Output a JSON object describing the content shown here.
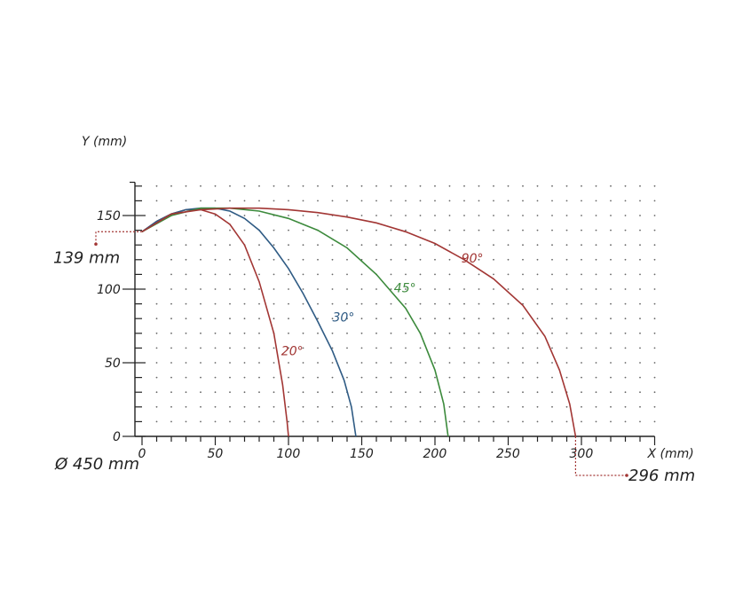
{
  "chart_data": {
    "type": "line",
    "title": "",
    "xlabel": "X (mm)",
    "ylabel": "Y (mm)",
    "xlim": [
      0,
      350
    ],
    "ylim": [
      0,
      175
    ],
    "xticks": [
      "0",
      "50",
      "100",
      "150",
      "200",
      "250",
      "300"
    ],
    "yticks": [
      "0",
      "50",
      "100",
      "150"
    ],
    "grid": "dotted",
    "annotations": {
      "height_label": "139 mm",
      "height_value": 139,
      "reach_label": "296 mm",
      "reach_value": 296,
      "diameter_label": "Ø 450 mm"
    },
    "series": [
      {
        "name": "20°",
        "color": "#a23634",
        "points": [
          [
            0,
            139
          ],
          [
            10,
            146
          ],
          [
            20,
            151
          ],
          [
            30,
            154
          ],
          [
            40,
            154
          ],
          [
            50,
            151
          ],
          [
            60,
            144
          ],
          [
            70,
            130
          ],
          [
            80,
            105
          ],
          [
            90,
            70
          ],
          [
            96,
            35
          ],
          [
            99,
            10
          ],
          [
            100,
            0
          ]
        ]
      },
      {
        "name": "30°",
        "color": "#2f5b84",
        "points": [
          [
            0,
            139
          ],
          [
            10,
            146
          ],
          [
            20,
            151
          ],
          [
            30,
            154
          ],
          [
            40,
            155
          ],
          [
            50,
            155
          ],
          [
            60,
            153
          ],
          [
            70,
            148
          ],
          [
            80,
            140
          ],
          [
            90,
            128
          ],
          [
            100,
            114
          ],
          [
            110,
            97
          ],
          [
            120,
            78
          ],
          [
            130,
            58
          ],
          [
            138,
            38
          ],
          [
            143,
            20
          ],
          [
            146,
            0
          ]
        ]
      },
      {
        "name": "45°",
        "color": "#3c8a3c",
        "points": [
          [
            0,
            139
          ],
          [
            20,
            150
          ],
          [
            40,
            155
          ],
          [
            60,
            155
          ],
          [
            80,
            153
          ],
          [
            100,
            148
          ],
          [
            120,
            140
          ],
          [
            140,
            128
          ],
          [
            160,
            110
          ],
          [
            180,
            87
          ],
          [
            190,
            70
          ],
          [
            200,
            45
          ],
          [
            206,
            22
          ],
          [
            209,
            0
          ]
        ]
      },
      {
        "name": "90°",
        "color": "#a23634",
        "points": [
          [
            0,
            139
          ],
          [
            20,
            151
          ],
          [
            40,
            154
          ],
          [
            60,
            155
          ],
          [
            80,
            155
          ],
          [
            100,
            154
          ],
          [
            120,
            152
          ],
          [
            140,
            149
          ],
          [
            160,
            145
          ],
          [
            180,
            139
          ],
          [
            200,
            131
          ],
          [
            220,
            120
          ],
          [
            240,
            107
          ],
          [
            260,
            89
          ],
          [
            275,
            68
          ],
          [
            285,
            45
          ],
          [
            292,
            22
          ],
          [
            296,
            0
          ]
        ]
      }
    ]
  }
}
